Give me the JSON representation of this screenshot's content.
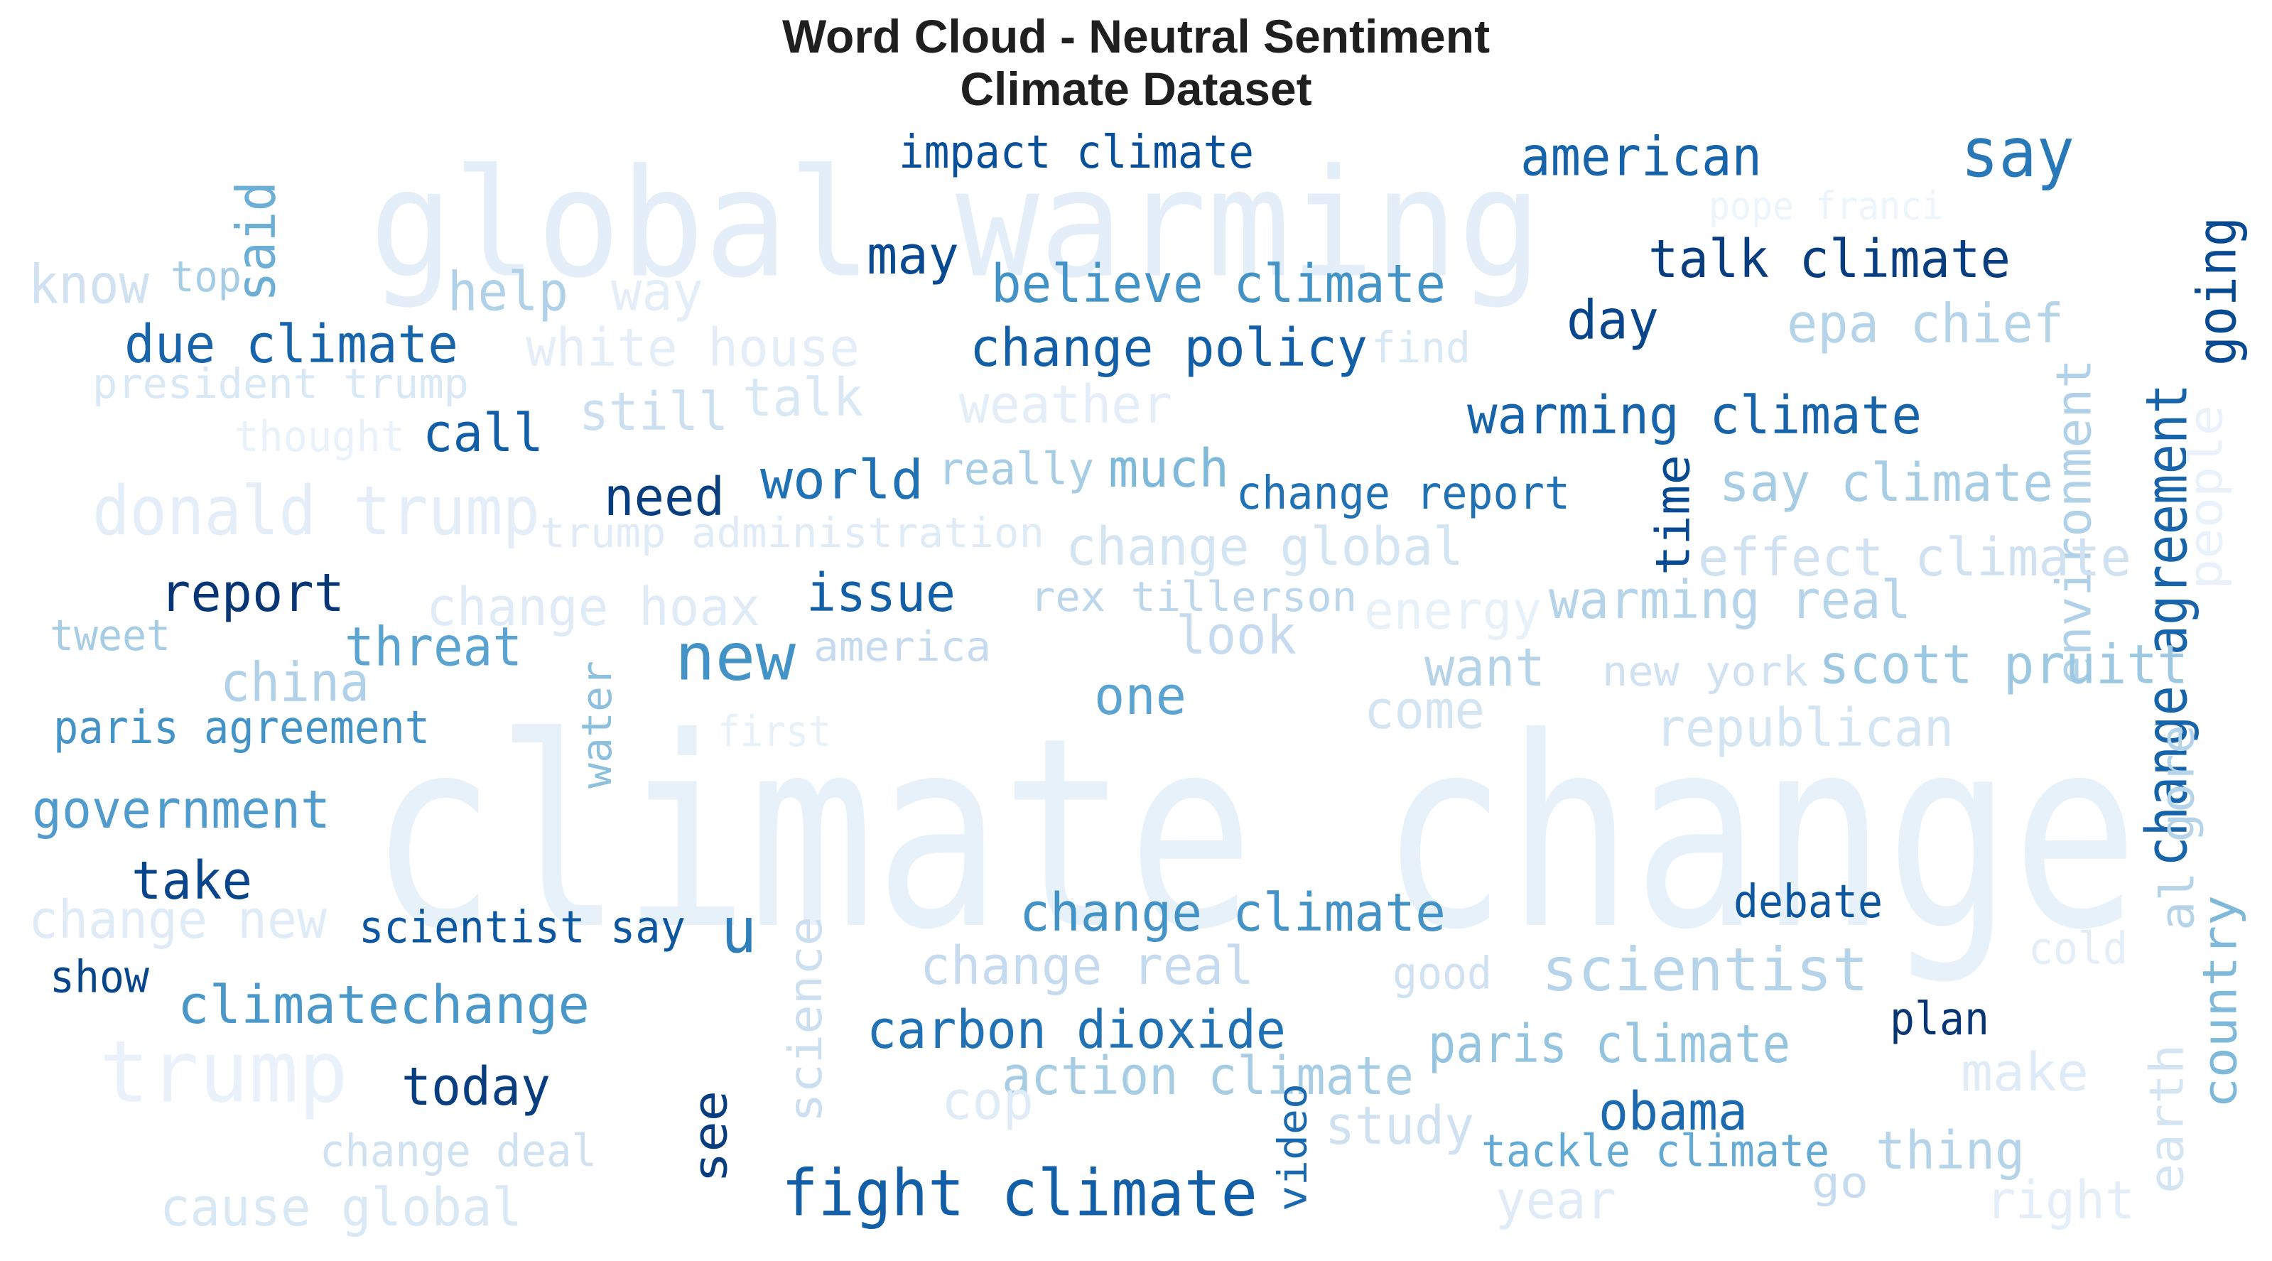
{
  "chart_data": {
    "type": "wordcloud",
    "title": "Word Cloud - Neutral Sentiment",
    "subtitle": "Climate Dataset",
    "colormap": "Blues",
    "words": [
      {
        "text": "climate change",
        "shade": 0.08
      },
      {
        "text": "global warming",
        "shade": 0.1
      },
      {
        "text": "trump",
        "shade": 0.07
      },
      {
        "text": "donald trump",
        "shade": 0.1
      },
      {
        "text": "impact climate",
        "shade": 0.88
      },
      {
        "text": "said",
        "shade": 0.5
      },
      {
        "text": "american",
        "shade": 0.8
      },
      {
        "text": "say",
        "shade": 0.72
      },
      {
        "text": "pope franci",
        "shade": 0.05
      },
      {
        "text": "change agreement",
        "shade": 0.8
      },
      {
        "text": "going",
        "shade": 0.9
      },
      {
        "text": "environment",
        "shade": 0.32
      },
      {
        "text": "know",
        "shade": 0.2
      },
      {
        "text": "top",
        "shade": 0.35
      },
      {
        "text": "help",
        "shade": 0.32
      },
      {
        "text": "way",
        "shade": 0.1
      },
      {
        "text": "may",
        "shade": 0.9
      },
      {
        "text": "believe climate",
        "shade": 0.62
      },
      {
        "text": "talk climate",
        "shade": 0.95
      },
      {
        "text": "due climate",
        "shade": 0.8
      },
      {
        "text": "white house",
        "shade": 0.1
      },
      {
        "text": "change policy",
        "shade": 0.82
      },
      {
        "text": "find",
        "shade": 0.15
      },
      {
        "text": "day",
        "shade": 0.92
      },
      {
        "text": "epa chief",
        "shade": 0.3
      },
      {
        "text": "president trump",
        "shade": 0.15
      },
      {
        "text": "talk",
        "shade": 0.15
      },
      {
        "text": "weather",
        "shade": 0.1
      },
      {
        "text": "warming climate",
        "shade": 0.8
      },
      {
        "text": "thought",
        "shade": 0.07
      },
      {
        "text": "call",
        "shade": 0.82
      },
      {
        "text": "still",
        "shade": 0.22
      },
      {
        "text": "people",
        "shade": 0.07
      },
      {
        "text": "really",
        "shade": 0.35
      },
      {
        "text": "much",
        "shade": 0.45
      },
      {
        "text": "change report",
        "shade": 0.75
      },
      {
        "text": "say climate",
        "shade": 0.35
      },
      {
        "text": "need",
        "shade": 0.95
      },
      {
        "text": "world",
        "shade": 0.75
      },
      {
        "text": "time",
        "shade": 0.9
      },
      {
        "text": "trump administration",
        "shade": 0.12
      },
      {
        "text": "change global",
        "shade": 0.18
      },
      {
        "text": "effect climate",
        "shade": 0.2
      },
      {
        "text": "report",
        "shade": 0.98
      },
      {
        "text": "change hoax",
        "shade": 0.12
      },
      {
        "text": "issue",
        "shade": 0.82
      },
      {
        "text": "rex tillerson",
        "shade": 0.28
      },
      {
        "text": "energy",
        "shade": 0.08
      },
      {
        "text": "warming real",
        "shade": 0.3
      },
      {
        "text": "tweet",
        "shade": 0.35
      },
      {
        "text": "threat",
        "shade": 0.55
      },
      {
        "text": "new",
        "shade": 0.62
      },
      {
        "text": "america",
        "shade": 0.25
      },
      {
        "text": "look",
        "shade": 0.25
      },
      {
        "text": "china",
        "shade": 0.32
      },
      {
        "text": "want",
        "shade": 0.3
      },
      {
        "text": "new york",
        "shade": 0.2
      },
      {
        "text": "scott pruitt",
        "shade": 0.38
      },
      {
        "text": "water",
        "shade": 0.42
      },
      {
        "text": "one",
        "shade": 0.55
      },
      {
        "text": "come",
        "shade": 0.18
      },
      {
        "text": "paris agreement",
        "shade": 0.62
      },
      {
        "text": "first",
        "shade": 0.08
      },
      {
        "text": "republican",
        "shade": 0.18
      },
      {
        "text": "government",
        "shade": 0.58
      },
      {
        "text": "al gore",
        "shade": 0.3
      },
      {
        "text": "take",
        "shade": 0.92
      },
      {
        "text": "change new",
        "shade": 0.12
      },
      {
        "text": "scientist say",
        "shade": 0.85
      },
      {
        "text": "u",
        "shade": 0.7
      },
      {
        "text": "change climate",
        "shade": 0.62
      },
      {
        "text": "debate",
        "shade": 0.85
      },
      {
        "text": "cold",
        "shade": 0.1
      },
      {
        "text": "show",
        "shade": 0.92
      },
      {
        "text": "science",
        "shade": 0.22
      },
      {
        "text": "change real",
        "shade": 0.25
      },
      {
        "text": "good",
        "shade": 0.2
      },
      {
        "text": "scientist",
        "shade": 0.3
      },
      {
        "text": "country",
        "shade": 0.45
      },
      {
        "text": "climatechange",
        "shade": 0.6
      },
      {
        "text": "carbon dioxide",
        "shade": 0.75
      },
      {
        "text": "plan",
        "shade": 0.98
      },
      {
        "text": "paris climate",
        "shade": 0.4
      },
      {
        "text": "today",
        "shade": 0.95
      },
      {
        "text": "action climate",
        "shade": 0.35
      },
      {
        "text": "make",
        "shade": 0.12
      },
      {
        "text": "earth",
        "shade": 0.18
      },
      {
        "text": "see",
        "shade": 0.95
      },
      {
        "text": "cop",
        "shade": 0.12
      },
      {
        "text": "obama",
        "shade": 0.78
      },
      {
        "text": "video",
        "shade": 0.78
      },
      {
        "text": "study",
        "shade": 0.2
      },
      {
        "text": "change deal",
        "shade": 0.2
      },
      {
        "text": "tackle climate",
        "shade": 0.52
      },
      {
        "text": "thing",
        "shade": 0.3
      },
      {
        "text": "fight climate",
        "shade": 0.82
      },
      {
        "text": "go",
        "shade": 0.25
      },
      {
        "text": "year",
        "shade": 0.12
      },
      {
        "text": "right",
        "shade": 0.1
      },
      {
        "text": "cause global",
        "shade": 0.15
      }
    ]
  }
}
